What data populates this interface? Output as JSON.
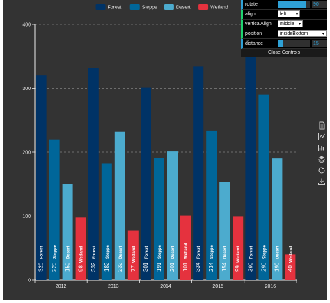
{
  "chart_data": {
    "type": "bar",
    "categories": [
      "2012",
      "2013",
      "2014",
      "2015",
      "2016"
    ],
    "series": [
      {
        "name": "Forest",
        "color": "#003366",
        "values": [
          320,
          332,
          301,
          334,
          390
        ]
      },
      {
        "name": "Steppe",
        "color": "#006699",
        "values": [
          220,
          182,
          191,
          234,
          290
        ]
      },
      {
        "name": "Desert",
        "color": "#4cabce",
        "values": [
          150,
          232,
          201,
          154,
          190
        ]
      },
      {
        "name": "Wetland",
        "color": "#e5323e",
        "values": [
          98,
          77,
          101,
          99,
          40
        ]
      }
    ],
    "ylim": [
      0,
      400
    ],
    "yticks": [
      0,
      100,
      200,
      300,
      400
    ],
    "grid": true,
    "legend_position": "top",
    "label_rotate": 90,
    "label_position": "insideBottom"
  },
  "controls": {
    "rotate": {
      "label": "rotate",
      "value": "90",
      "fraction": 0.9
    },
    "align": {
      "label": "align",
      "value": "left"
    },
    "vertical_align": {
      "label": "verticalAlign",
      "value": "middle"
    },
    "position": {
      "label": "position",
      "value": "insideBottom"
    },
    "distance": {
      "label": "distance",
      "value": "15",
      "fraction": 0.15
    },
    "close_label": "Close Controls"
  },
  "toolbox": [
    "data-view-icon",
    "line-chart-icon",
    "bar-chart-icon",
    "stack-icon",
    "restore-icon",
    "save-image-icon"
  ],
  "colors": {
    "background": "#333333",
    "axis": "#eeeeee",
    "grid": "#aaaaaa",
    "control_accent": "#2fa1d6"
  }
}
